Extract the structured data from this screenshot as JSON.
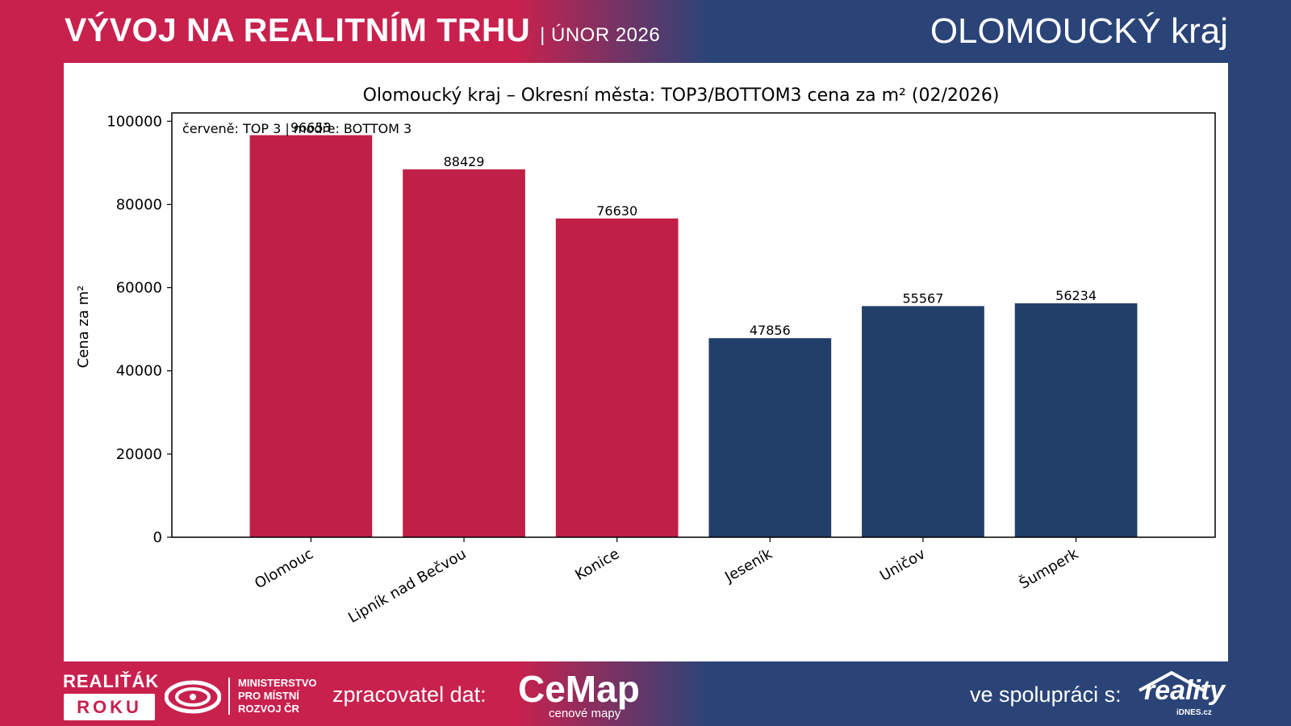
{
  "header": {
    "title": "VÝVOJ NA REALITNÍM TRHU",
    "subtitle": "| ÚNOR 2026",
    "region": "OLOMOUCKÝ kraj"
  },
  "colors": {
    "red": "#c8214e",
    "blue": "#2a4478",
    "bar_top": "#c02046",
    "bar_bottom": "#213f69"
  },
  "chart_data": {
    "type": "bar",
    "title": "Olomoucký kraj – Okresní města: TOP3/BOTTOM3 cena za m² (02/2026)",
    "annotation": "červeně: TOP 3 | modře: BOTTOM 3",
    "xlabel": "",
    "ylabel": "Cena za m²",
    "ylim": [
      0,
      102000
    ],
    "yticks": [
      0,
      20000,
      40000,
      60000,
      80000,
      100000
    ],
    "grid": false,
    "categories": [
      "Olomouc",
      "Lipník nad Bečvou",
      "Konice",
      "Jeseník",
      "Uničov",
      "Šumperk"
    ],
    "values": [
      96653,
      88429,
      76630,
      47856,
      55567,
      56234
    ],
    "groups": [
      "top",
      "top",
      "top",
      "bottom",
      "bottom",
      "bottom"
    ]
  },
  "footer": {
    "realitak": "REALIŤÁK",
    "roku": "ROKU",
    "ministry_lines": [
      "MINISTERSTVO",
      "PRO MÍSTNÍ",
      "ROZVOJ ČR"
    ],
    "processor_label": "zpracovatel dat:",
    "cemap_name": "CeMap",
    "cemap_sub": "cenové mapy",
    "cooperation_label": "ve spolupráci s:",
    "reality_name": "reality",
    "reality_sub": "iDNES.cz"
  }
}
